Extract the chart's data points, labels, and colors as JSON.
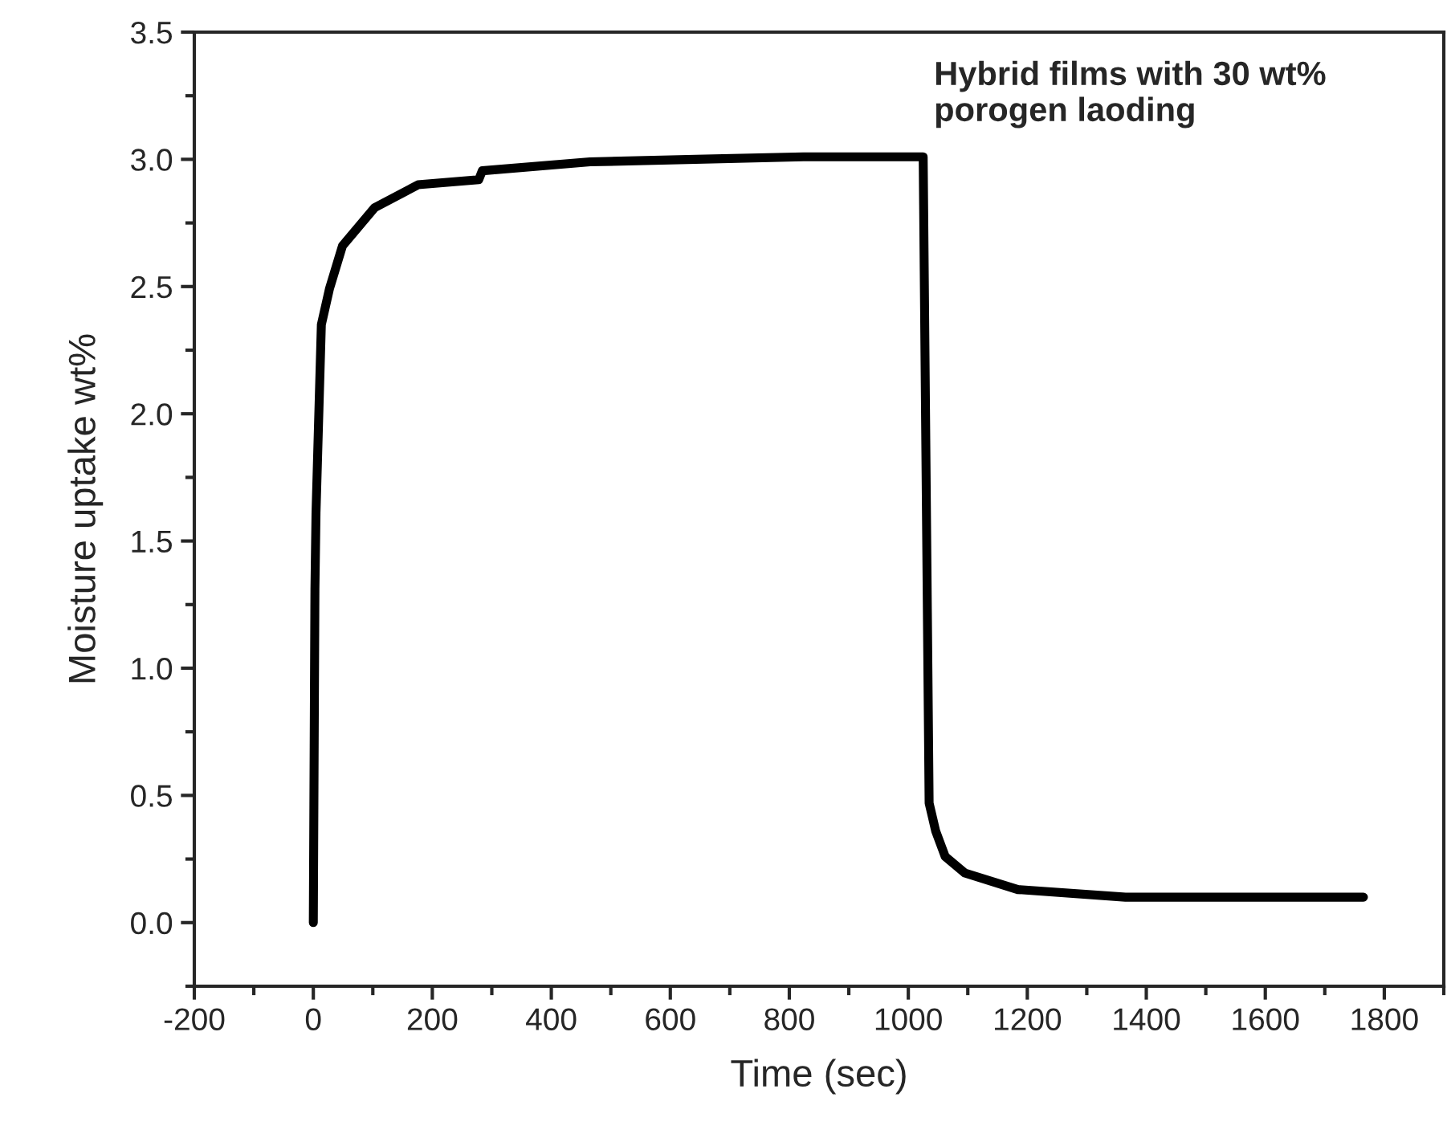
{
  "chart_data": {
    "type": "line",
    "xlabel": "Time (sec)",
    "ylabel": "Moisture uptake wt%",
    "annotations": [
      "Hybrid films with 30 wt%\nporogen laoding"
    ],
    "x": [
      0,
      2.7,
      4.5,
      13.5,
      27,
      49,
      103,
      176,
      278,
      284,
      465,
      643,
      824,
      1020,
      1025,
      1035,
      1046,
      1062,
      1095,
      1184,
      1365,
      1765
    ],
    "series": [
      {
        "color": "#000000",
        "values": [
          0,
          1.31,
          1.61,
          2.35,
          2.49,
          2.66,
          2.81,
          2.9,
          2.92,
          2.955,
          2.99,
          3.0,
          3.01,
          3.01,
          3.01,
          0.47,
          0.36,
          0.26,
          0.195,
          0.13,
          0.1,
          0.1
        ]
      }
    ],
    "xlim": [
      -200,
      1900
    ],
    "xticks": [
      -200,
      0,
      200,
      400,
      600,
      800,
      1000,
      1200,
      1400,
      1600,
      1800
    ],
    "ylim": [
      -0.25,
      3.5
    ],
    "yticks": [
      {
        "value": 0,
        "label": "0.0"
      },
      0.5,
      {
        "value": 1,
        "label": "1.0"
      },
      1.5,
      {
        "value": 2,
        "label": "2.0"
      },
      2.5,
      {
        "value": 3,
        "label": "3.0"
      },
      3.5
    ],
    "grid": false,
    "legend": false,
    "marker": "none",
    "line_style": "solid"
  }
}
